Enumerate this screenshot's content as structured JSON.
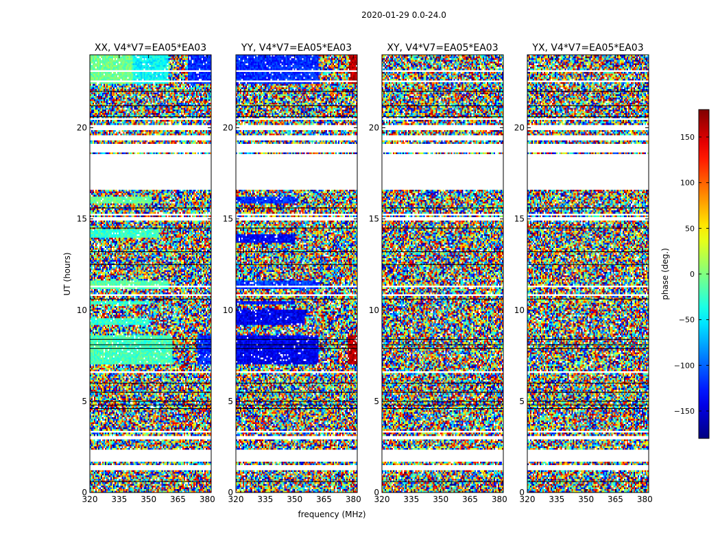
{
  "figure": {
    "suptitle": "2020-01-29 0.0-24.0",
    "ylabel": "UT (hours)",
    "xlabel": "frequency (MHz)"
  },
  "chart_data": {
    "type": "heatmap",
    "value_meaning": "visibility phase (deg.)",
    "x": {
      "label": "frequency (MHz)",
      "range": [
        320,
        382
      ],
      "ticks": [
        320,
        335,
        350,
        365,
        380
      ]
    },
    "y": {
      "label": "UT (hours)",
      "range": [
        0,
        24
      ],
      "ticks": [
        0,
        5,
        10,
        15,
        20
      ]
    },
    "colorbar": {
      "label": "phase (deg.)",
      "range": [
        -180,
        180
      ],
      "ticks": [
        -150,
        -100,
        -50,
        0,
        50,
        100,
        150
      ],
      "colormap": "jet",
      "colors": [
        "#00007f",
        "#0000ff",
        "#00ffff",
        "#7fff7f",
        "#ffff00",
        "#ff0000",
        "#7f0000"
      ]
    },
    "flagged_ut_ranges_hours": [
      [
        1.2,
        1.5
      ],
      [
        1.7,
        2.3
      ],
      [
        18.7,
        19.1
      ],
      [
        19.35,
        19.6
      ],
      [
        19.9,
        20.2
      ],
      [
        20.4,
        20.5
      ],
      [
        16.55,
        18.6
      ],
      [
        11.25,
        11.35
      ],
      [
        10.75,
        10.85
      ],
      [
        6.55,
        6.65
      ],
      [
        3.25,
        3.35
      ],
      [
        2.95,
        3.05
      ],
      [
        22.5,
        22.6
      ],
      [
        23.05,
        23.15
      ],
      [
        14.95,
        15.05
      ],
      [
        15.2,
        15.3
      ]
    ],
    "panels": [
      {
        "title": "XX, V4*V7=EA05*EA03",
        "coherent_bands": [
          {
            "ut": [
              22.4,
              24.0
            ],
            "freq": [
              320,
              342
            ],
            "phase": -5
          },
          {
            "ut": [
              22.4,
              24.0
            ],
            "freq": [
              342,
              360
            ],
            "phase": -45
          },
          {
            "ut": [
              22.4,
              24.0
            ],
            "freq": [
              370,
              382
            ],
            "phase": -120
          },
          {
            "ut": [
              15.8,
              16.2
            ],
            "freq": [
              320,
              352
            ],
            "phase": -10
          },
          {
            "ut": [
              11.2,
              11.6
            ],
            "freq": [
              320,
              360
            ],
            "phase": -15
          },
          {
            "ut": [
              14.0,
              14.4
            ],
            "freq": [
              320,
              355
            ],
            "phase": -25
          },
          {
            "ut": [
              9.2,
              9.6
            ],
            "freq": [
              320,
              350
            ],
            "phase": -30
          },
          {
            "ut": [
              7.0,
              8.6
            ],
            "freq": [
              320,
              362
            ],
            "phase": -20
          },
          {
            "ut": [
              7.0,
              8.6
            ],
            "freq": [
              375,
              382
            ],
            "phase": -120
          },
          {
            "ut": [
              10.3,
              10.5
            ],
            "freq": [
              320,
              350
            ],
            "phase": -30
          }
        ]
      },
      {
        "title": "YY, V4*V7=EA05*EA03",
        "coherent_bands": [
          {
            "ut": [
              22.4,
              24.0
            ],
            "freq": [
              320,
              362
            ],
            "phase": -120
          },
          {
            "ut": [
              22.4,
              24.0
            ],
            "freq": [
              378,
              382
            ],
            "phase": 160
          },
          {
            "ut": [
              15.8,
              16.2
            ],
            "freq": [
              320,
              352
            ],
            "phase": -120
          },
          {
            "ut": [
              13.7,
              14.2
            ],
            "freq": [
              320,
              350
            ],
            "phase": -135
          },
          {
            "ut": [
              11.2,
              11.6
            ],
            "freq": [
              320,
              362
            ],
            "phase": -115
          },
          {
            "ut": [
              9.2,
              10.0
            ],
            "freq": [
              320,
              355
            ],
            "phase": -140
          },
          {
            "ut": [
              7.0,
              8.6
            ],
            "freq": [
              320,
              362
            ],
            "phase": -140
          },
          {
            "ut": [
              7.0,
              8.6
            ],
            "freq": [
              377,
              382
            ],
            "phase": 160
          },
          {
            "ut": [
              10.3,
              10.5
            ],
            "freq": [
              320,
              350
            ],
            "phase": -130
          }
        ]
      },
      {
        "title": "XY, V4*V7=EA05*EA03",
        "coherent_bands": []
      },
      {
        "title": "YX, V4*V7=EA05*EA03",
        "coherent_bands": []
      }
    ]
  }
}
